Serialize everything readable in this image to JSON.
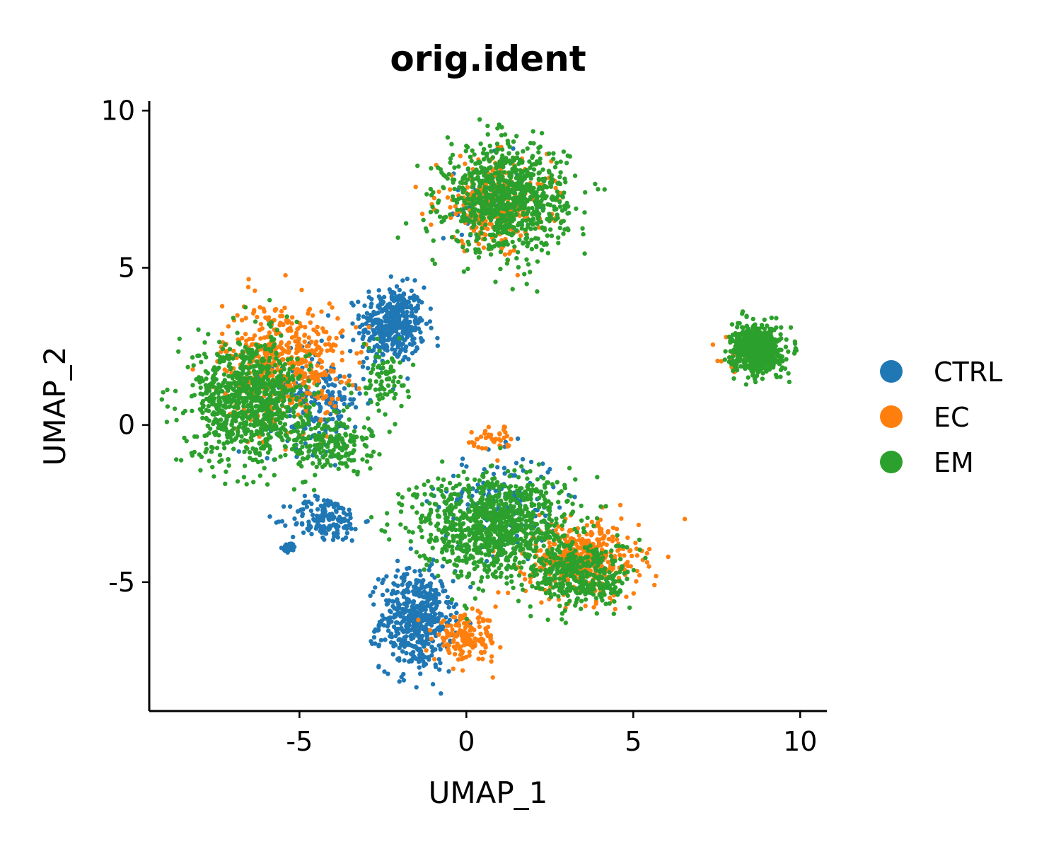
{
  "chart_data": {
    "type": "scatter",
    "title": "orig.ident",
    "xlabel": "UMAP_1",
    "ylabel": "UMAP_2",
    "xlim": [
      -9.5,
      10.8
    ],
    "ylim": [
      -9.1,
      10.3
    ],
    "xticks": [
      -5,
      0,
      5,
      10
    ],
    "yticks": [
      -5,
      0,
      5,
      10
    ],
    "xtick_labels": [
      "-5",
      "0",
      "5",
      "10"
    ],
    "ytick_labels": [
      "-5",
      "0",
      "5",
      "10"
    ],
    "grid": false,
    "legend_position": "right",
    "series": [
      {
        "name": "CTRL",
        "color": "#1f77b4",
        "clusters": [
          {
            "center": [
              -2.2,
              3.2
            ],
            "spread": [
              0.8,
              1.0
            ],
            "count": 420
          },
          {
            "center": [
              -1.5,
              -6.2
            ],
            "spread": [
              0.9,
              1.3
            ],
            "count": 520
          },
          {
            "center": [
              -4.2,
              -3.0
            ],
            "spread": [
              0.9,
              0.6
            ],
            "count": 160
          },
          {
            "center": [
              -5.3,
              -3.9
            ],
            "spread": [
              0.15,
              0.12
            ],
            "count": 40
          },
          {
            "center": [
              -4.5,
              0.8
            ],
            "spread": [
              1.2,
              1.3
            ],
            "count": 220
          },
          {
            "center": [
              1.0,
              -2.5
            ],
            "spread": [
              1.5,
              1.3
            ],
            "count": 160
          },
          {
            "center": [
              0.5,
              7.0
            ],
            "spread": [
              1.0,
              1.2
            ],
            "count": 50
          }
        ]
      },
      {
        "name": "EC",
        "color": "#ff7f0e",
        "clusters": [
          {
            "center": [
              -5.5,
              2.0
            ],
            "spread": [
              1.5,
              1.6
            ],
            "count": 520
          },
          {
            "center": [
              3.5,
              -4.3
            ],
            "spread": [
              1.4,
              1.0
            ],
            "count": 440
          },
          {
            "center": [
              0.8,
              7.0
            ],
            "spread": [
              1.4,
              1.2
            ],
            "count": 280
          },
          {
            "center": [
              0.0,
              -6.8
            ],
            "spread": [
              0.8,
              0.6
            ],
            "count": 160
          },
          {
            "center": [
              8.5,
              2.3
            ],
            "spread": [
              0.7,
              0.45
            ],
            "count": 60
          },
          {
            "center": [
              0.8,
              -0.5
            ],
            "spread": [
              0.6,
              0.4
            ],
            "count": 40
          }
        ]
      },
      {
        "name": "EM",
        "color": "#2ca02c",
        "clusters": [
          {
            "center": [
              1.2,
              7.2
            ],
            "spread": [
              1.5,
              1.4
            ],
            "count": 900
          },
          {
            "center": [
              -6.5,
              0.8
            ],
            "spread": [
              1.4,
              1.6
            ],
            "count": 880
          },
          {
            "center": [
              0.8,
              -3.2
            ],
            "spread": [
              1.9,
              1.4
            ],
            "count": 980
          },
          {
            "center": [
              3.5,
              -4.8
            ],
            "spread": [
              1.2,
              0.9
            ],
            "count": 360
          },
          {
            "center": [
              8.7,
              2.4
            ],
            "spread": [
              0.6,
              0.6
            ],
            "count": 700
          },
          {
            "center": [
              -4.0,
              -0.5
            ],
            "spread": [
              1.0,
              0.8
            ],
            "count": 200
          },
          {
            "center": [
              -2.5,
              1.5
            ],
            "spread": [
              0.6,
              0.8
            ],
            "count": 80
          }
        ]
      }
    ]
  }
}
